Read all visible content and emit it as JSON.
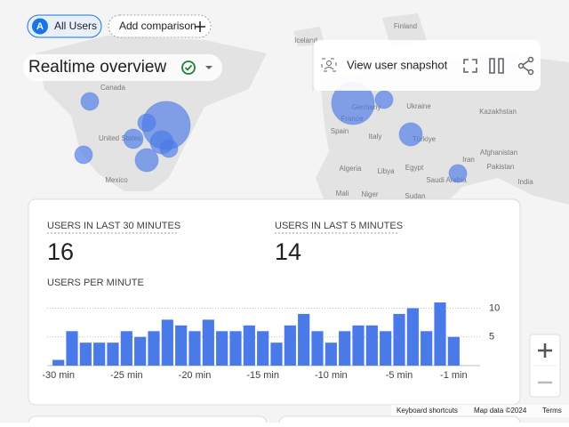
{
  "toolbar": {
    "badge": "A",
    "chips": [
      "All Users",
      "Add comparison"
    ]
  },
  "header": {
    "title": "Realtime overview",
    "action": "View user snapshot"
  },
  "map": {
    "labels": [
      "Iceland",
      "Finland",
      "Canada",
      "Germany",
      "Ukraine",
      "Kazakhstan",
      "France",
      "United States",
      "Spain",
      "Italy",
      "Türkiye",
      "Afghanistan",
      "Algeria",
      "Libya",
      "Egypt",
      "Iran",
      "Pakistan",
      "Mexico",
      "Saudi Arabia",
      "India",
      "Mali",
      "Niger",
      "Sudan"
    ]
  },
  "card": {
    "metrics": [
      {
        "label": "USERS IN LAST 30 MINUTES",
        "value": 16
      },
      {
        "label": "USERS IN LAST 5 MINUTES",
        "value": 14
      }
    ],
    "chart": {
      "type": "bar",
      "title": "USERS PER MINUTE",
      "categories": [
        "-30 min",
        null,
        null,
        null,
        null,
        "-25 min",
        null,
        null,
        null,
        null,
        "-20 min",
        null,
        null,
        null,
        null,
        "-15 min",
        null,
        null,
        null,
        null,
        "-10 min",
        null,
        null,
        null,
        null,
        "-5 min",
        null,
        null,
        null,
        "-1 min"
      ],
      "values": [
        1,
        6,
        4,
        4,
        4,
        6,
        5,
        6,
        8,
        7,
        6,
        8,
        6,
        6,
        7,
        6,
        4,
        7,
        9,
        6,
        4,
        6,
        7,
        7,
        6,
        9,
        10,
        6,
        11,
        5
      ],
      "color": "#4a7ae8",
      "ylim": [
        0,
        11
      ],
      "yticks": [
        5,
        10
      ],
      "grid": true
    }
  },
  "footer": [
    "Keyboard shortcuts",
    "Map data ©2024",
    "Terms"
  ]
}
